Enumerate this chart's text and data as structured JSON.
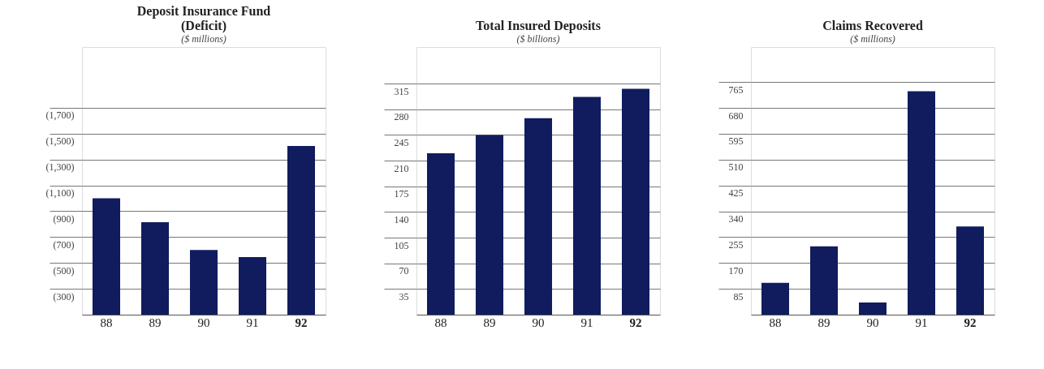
{
  "chart_data": [
    {
      "type": "bar",
      "title": "Deposit Insurance Fund",
      "annotations": [
        "(Deficit)"
      ],
      "subtitle": "($ millions)",
      "categories": [
        "88",
        "89",
        "90",
        "91",
        "92"
      ],
      "values": [
        1000,
        815,
        600,
        545,
        1405
      ],
      "color": "#101c5e",
      "ylim": [
        100,
        2170
      ],
      "yticks": [
        {
          "value": 300,
          "label": "(300)"
        },
        {
          "value": 500,
          "label": "(500)"
        },
        {
          "value": 700,
          "label": "(700)"
        },
        {
          "value": 900,
          "label": "(900)"
        },
        {
          "value": 1100,
          "label": "(1,100)"
        },
        {
          "value": 1300,
          "label": "(1,300)"
        },
        {
          "value": 1500,
          "label": "(1,500)"
        },
        {
          "value": 1700,
          "label": "(1,700)"
        }
      ],
      "grid": "y"
    },
    {
      "type": "bar",
      "title": "Total Insured Deposits",
      "subtitle": "($ billions)",
      "categories": [
        "88",
        "89",
        "90",
        "91",
        "92"
      ],
      "values": [
        220,
        245,
        268,
        297,
        308
      ],
      "color": "#101c5e",
      "ylim": [
        0,
        365
      ],
      "yticks": [
        35,
        70,
        105,
        140,
        175,
        210,
        245,
        280,
        315
      ],
      "grid": "y"
    },
    {
      "type": "bar",
      "title": "Claims Recovered",
      "subtitle": "($ millions)",
      "categories": [
        "88",
        "89",
        "90",
        "91",
        "92"
      ],
      "values": [
        105,
        225,
        40,
        735,
        290
      ],
      "color": "#101c5e",
      "ylim": [
        0,
        880
      ],
      "yticks": [
        85,
        170,
        255,
        340,
        425,
        510,
        595,
        680,
        765
      ],
      "grid": "y"
    }
  ]
}
